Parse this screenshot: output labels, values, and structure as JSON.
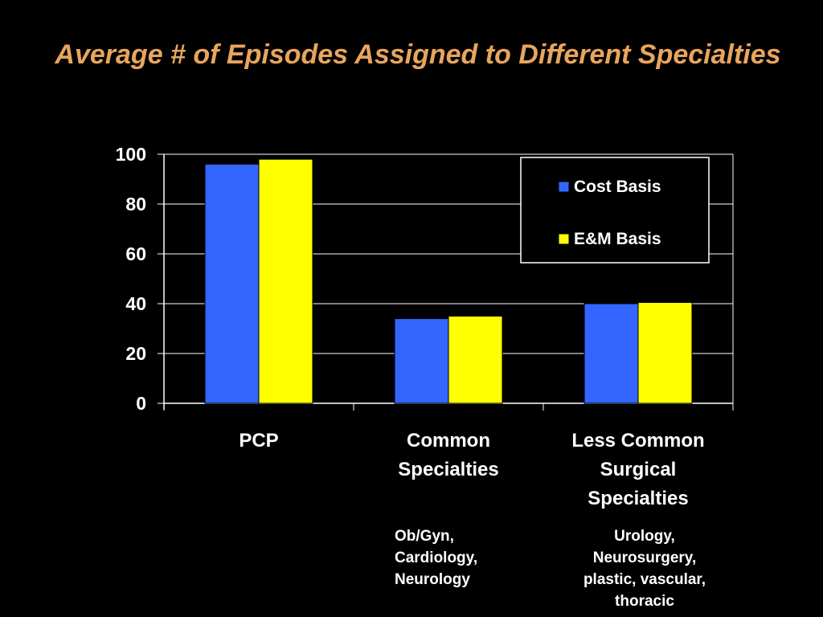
{
  "title": "Average # of Episodes Assigned to Different Specialties",
  "colors": {
    "background": "#000000",
    "title": "#e8a55c",
    "cost_basis": "#3366ff",
    "em_basis": "#ffff00",
    "axis": "#ffffff"
  },
  "chart_data": {
    "type": "bar",
    "categories": [
      "PCP",
      "Common Specialties",
      "Less Common Surgical Specialties"
    ],
    "series": [
      {
        "name": "Cost Basis",
        "values": [
          96,
          34,
          40
        ]
      },
      {
        "name": "E&M Basis",
        "values": [
          98,
          35,
          40.5
        ]
      }
    ],
    "ylim": [
      0,
      100
    ],
    "yticks": [
      0,
      20,
      40,
      60,
      80,
      100
    ],
    "grid": true,
    "legend": "top-right"
  },
  "annotations": {
    "common": "Ob/Gyn,\nCardiology,\nNeurology",
    "less_common": "Urology,\nNeurosurgery,\nplastic, vascular,\nthoracic"
  }
}
